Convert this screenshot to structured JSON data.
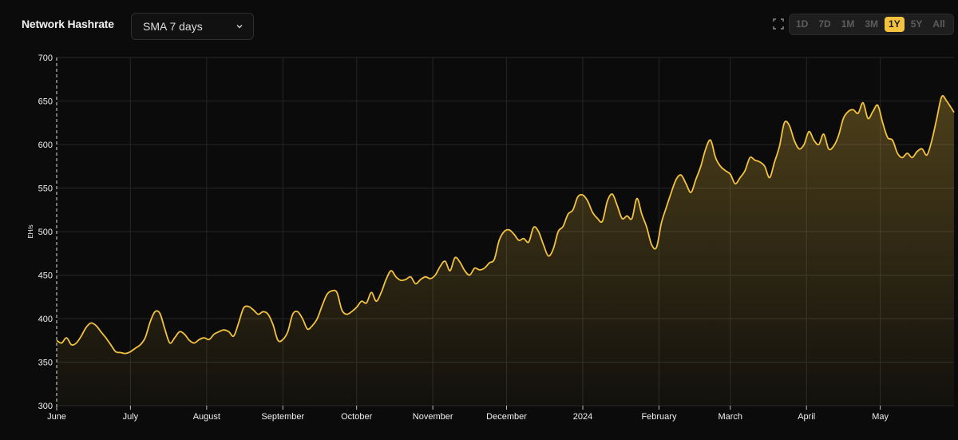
{
  "header": {
    "title": "Network Hashrate",
    "sma_select": "SMA 7 days"
  },
  "range_buttons": [
    "1D",
    "7D",
    "1M",
    "3M",
    "1Y",
    "5Y",
    "All"
  ],
  "active_range": "1Y",
  "colors": {
    "accent": "#f3c340",
    "background": "#0b0b0b",
    "grid": "#2a2a2a"
  },
  "icons": {
    "expand": "expand-icon",
    "dropdown": "chevron-down-icon"
  },
  "chart_data": {
    "type": "area",
    "ylabel": "EH/s",
    "ylim": [
      300,
      700
    ],
    "yticks": [
      300,
      350,
      400,
      450,
      500,
      550,
      600,
      650,
      700
    ],
    "x_unit": "days",
    "xlim": [
      0,
      365
    ],
    "xticks": [
      {
        "label": "June",
        "day": 0
      },
      {
        "label": "July",
        "day": 30
      },
      {
        "label": "August",
        "day": 61
      },
      {
        "label": "September",
        "day": 92
      },
      {
        "label": "October",
        "day": 122
      },
      {
        "label": "November",
        "day": 153
      },
      {
        "label": "December",
        "day": 183
      },
      {
        "label": "2024",
        "day": 214
      },
      {
        "label": "February",
        "day": 245
      },
      {
        "label": "March",
        "day": 274
      },
      {
        "label": "April",
        "day": 305
      },
      {
        "label": "May",
        "day": 335
      }
    ],
    "grid": true,
    "series": [
      {
        "values": [
          [
            0,
            375
          ],
          [
            2,
            372
          ],
          [
            4,
            378
          ],
          [
            6,
            370
          ],
          [
            8,
            372
          ],
          [
            10,
            380
          ],
          [
            12,
            390
          ],
          [
            14,
            395
          ],
          [
            16,
            392
          ],
          [
            18,
            385
          ],
          [
            20,
            378
          ],
          [
            22,
            370
          ],
          [
            24,
            362
          ],
          [
            26,
            361
          ],
          [
            28,
            360
          ],
          [
            30,
            362
          ],
          [
            32,
            366
          ],
          [
            34,
            370
          ],
          [
            36,
            378
          ],
          [
            38,
            396
          ],
          [
            40,
            408
          ],
          [
            42,
            406
          ],
          [
            44,
            388
          ],
          [
            46,
            372
          ],
          [
            48,
            378
          ],
          [
            50,
            385
          ],
          [
            52,
            382
          ],
          [
            54,
            375
          ],
          [
            56,
            372
          ],
          [
            58,
            376
          ],
          [
            60,
            378
          ],
          [
            62,
            376
          ],
          [
            64,
            382
          ],
          [
            66,
            385
          ],
          [
            68,
            387
          ],
          [
            70,
            385
          ],
          [
            72,
            380
          ],
          [
            74,
            395
          ],
          [
            76,
            412
          ],
          [
            78,
            414
          ],
          [
            80,
            410
          ],
          [
            82,
            405
          ],
          [
            84,
            408
          ],
          [
            86,
            405
          ],
          [
            88,
            393
          ],
          [
            90,
            375
          ],
          [
            92,
            376
          ],
          [
            94,
            385
          ],
          [
            96,
            405
          ],
          [
            98,
            408
          ],
          [
            100,
            400
          ],
          [
            102,
            388
          ],
          [
            104,
            392
          ],
          [
            106,
            400
          ],
          [
            108,
            415
          ],
          [
            110,
            428
          ],
          [
            112,
            432
          ],
          [
            114,
            430
          ],
          [
            116,
            410
          ],
          [
            118,
            405
          ],
          [
            120,
            408
          ],
          [
            122,
            413
          ],
          [
            124,
            420
          ],
          [
            126,
            418
          ],
          [
            128,
            430
          ],
          [
            130,
            420
          ],
          [
            132,
            430
          ],
          [
            134,
            445
          ],
          [
            136,
            455
          ],
          [
            138,
            448
          ],
          [
            140,
            444
          ],
          [
            142,
            445
          ],
          [
            144,
            448
          ],
          [
            146,
            440
          ],
          [
            148,
            445
          ],
          [
            150,
            448
          ],
          [
            152,
            446
          ],
          [
            154,
            450
          ],
          [
            156,
            460
          ],
          [
            158,
            466
          ],
          [
            160,
            455
          ],
          [
            162,
            470
          ],
          [
            164,
            465
          ],
          [
            166,
            455
          ],
          [
            168,
            450
          ],
          [
            170,
            458
          ],
          [
            172,
            456
          ],
          [
            174,
            458
          ],
          [
            176,
            464
          ],
          [
            178,
            468
          ],
          [
            180,
            490
          ],
          [
            182,
            500
          ],
          [
            184,
            502
          ],
          [
            186,
            497
          ],
          [
            188,
            490
          ],
          [
            190,
            492
          ],
          [
            192,
            488
          ],
          [
            194,
            505
          ],
          [
            196,
            500
          ],
          [
            198,
            485
          ],
          [
            200,
            472
          ],
          [
            202,
            480
          ],
          [
            204,
            500
          ],
          [
            206,
            506
          ],
          [
            208,
            520
          ],
          [
            210,
            525
          ],
          [
            212,
            540
          ],
          [
            214,
            542
          ],
          [
            216,
            535
          ],
          [
            218,
            522
          ],
          [
            220,
            515
          ],
          [
            222,
            512
          ],
          [
            224,
            535
          ],
          [
            226,
            543
          ],
          [
            228,
            530
          ],
          [
            230,
            515
          ],
          [
            232,
            518
          ],
          [
            234,
            515
          ],
          [
            236,
            538
          ],
          [
            238,
            520
          ],
          [
            240,
            505
          ],
          [
            242,
            485
          ],
          [
            244,
            482
          ],
          [
            246,
            510
          ],
          [
            248,
            528
          ],
          [
            250,
            545
          ],
          [
            252,
            560
          ],
          [
            254,
            565
          ],
          [
            256,
            555
          ],
          [
            258,
            545
          ],
          [
            260,
            560
          ],
          [
            262,
            575
          ],
          [
            264,
            595
          ],
          [
            266,
            605
          ],
          [
            268,
            585
          ],
          [
            270,
            575
          ],
          [
            272,
            570
          ],
          [
            274,
            566
          ],
          [
            276,
            555
          ],
          [
            278,
            562
          ],
          [
            280,
            570
          ],
          [
            282,
            585
          ],
          [
            284,
            582
          ],
          [
            286,
            580
          ],
          [
            288,
            575
          ],
          [
            290,
            562
          ],
          [
            292,
            580
          ],
          [
            294,
            598
          ],
          [
            296,
            625
          ],
          [
            298,
            622
          ],
          [
            300,
            605
          ],
          [
            302,
            595
          ],
          [
            304,
            600
          ],
          [
            306,
            615
          ],
          [
            308,
            605
          ],
          [
            310,
            600
          ],
          [
            312,
            612
          ],
          [
            314,
            595
          ],
          [
            316,
            598
          ],
          [
            318,
            610
          ],
          [
            320,
            630
          ],
          [
            322,
            638
          ],
          [
            324,
            640
          ],
          [
            326,
            636
          ],
          [
            328,
            648
          ],
          [
            330,
            630
          ],
          [
            332,
            638
          ],
          [
            334,
            645
          ],
          [
            336,
            625
          ],
          [
            338,
            608
          ],
          [
            340,
            605
          ],
          [
            342,
            590
          ],
          [
            344,
            585
          ],
          [
            346,
            590
          ],
          [
            348,
            585
          ],
          [
            350,
            592
          ],
          [
            352,
            595
          ],
          [
            354,
            588
          ],
          [
            356,
            605
          ],
          [
            358,
            630
          ],
          [
            360,
            655
          ],
          [
            362,
            650
          ],
          [
            365,
            637
          ]
        ]
      }
    ]
  }
}
